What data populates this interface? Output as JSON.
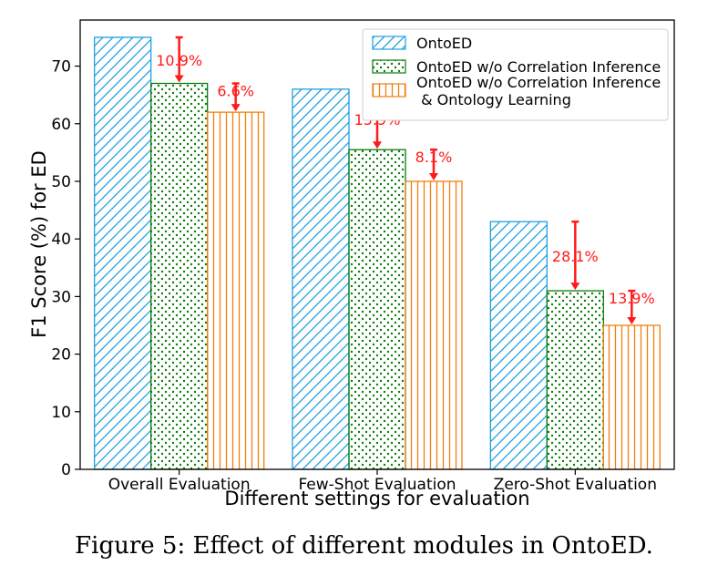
{
  "caption": "Figure 5: Effect of different modules in OntoED.",
  "chart_data": {
    "type": "bar",
    "xlabel": "Different settings for evaluation",
    "ylabel": "F1 Score (%) for ED",
    "ylim": [
      0,
      78
    ],
    "yticks": [
      0,
      10,
      20,
      30,
      40,
      50,
      60,
      70
    ],
    "grid": false,
    "legend_position": "top-right",
    "categories": [
      "Overall Evaluation",
      "Few-Shot Evaluation",
      "Zero-Shot Evaluation"
    ],
    "series": [
      {
        "name": "OntoED",
        "values": [
          75,
          66,
          43
        ],
        "color": "#1f9fe0",
        "pattern": "diagonal"
      },
      {
        "name": "OntoED w/o Correlation Inference",
        "values": [
          67,
          55.5,
          31
        ],
        "color": "#0a7d0a",
        "pattern": "dots"
      },
      {
        "name": "OntoED w/o Correlation Inference\n & Ontology Learning",
        "values": [
          62,
          50,
          25
        ],
        "color": "#f07f0f",
        "pattern": "vertical"
      }
    ],
    "annotations": [
      {
        "text": "10.9%",
        "category": 0,
        "from_series": 0,
        "to_series": 1
      },
      {
        "text": "6.6%",
        "category": 0,
        "from_series": 1,
        "to_series": 2
      },
      {
        "text": "15.9%",
        "category": 1,
        "from_series": 0,
        "to_series": 1
      },
      {
        "text": "8.1%",
        "category": 1,
        "from_series": 1,
        "to_series": 2
      },
      {
        "text": "28.1%",
        "category": 2,
        "from_series": 0,
        "to_series": 1
      },
      {
        "text": "13.9%",
        "category": 2,
        "from_series": 1,
        "to_series": 2
      }
    ],
    "annotation_color": "#ff1a1a"
  }
}
